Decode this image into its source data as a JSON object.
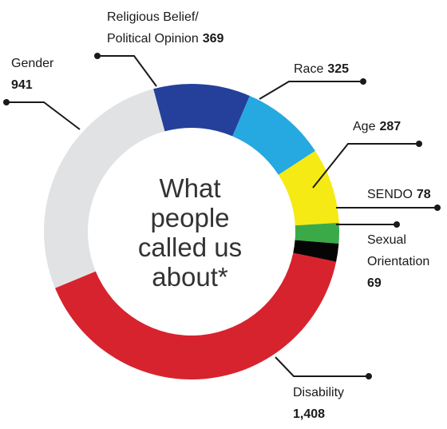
{
  "chart_data": {
    "type": "pie",
    "donut": true,
    "center_text": [
      "What",
      "people",
      "called us",
      "about*"
    ],
    "slices": [
      {
        "name": "Religious Belief/ Political Opinion",
        "label_lines": [
          "Religious Belief/",
          "Political Opinion"
        ],
        "value": 369,
        "value_text": "369",
        "color": "#24409a"
      },
      {
        "name": "Race",
        "label_lines": [
          "Race"
        ],
        "value": 325,
        "value_text": "325",
        "color": "#26a8e0"
      },
      {
        "name": "Age",
        "label_lines": [
          "Age"
        ],
        "value": 287,
        "value_text": "287",
        "color": "#f5ea14"
      },
      {
        "name": "SENDO",
        "label_lines": [
          "SENDO"
        ],
        "value": 78,
        "value_text": "78",
        "color": "#3aaa49"
      },
      {
        "name": "Sexual Orientation",
        "label_lines": [
          "Sexual",
          "Orientation"
        ],
        "value": 69,
        "value_text": "69",
        "color": "#050505"
      },
      {
        "name": "Disability",
        "label_lines": [
          "Disability"
        ],
        "value": 1408,
        "value_text": "1,408",
        "color": "#d7232d"
      },
      {
        "name": "Gender",
        "label_lines": [
          "Gender"
        ],
        "value": 941,
        "value_text": "941",
        "color": "#e1e2e4"
      }
    ]
  }
}
